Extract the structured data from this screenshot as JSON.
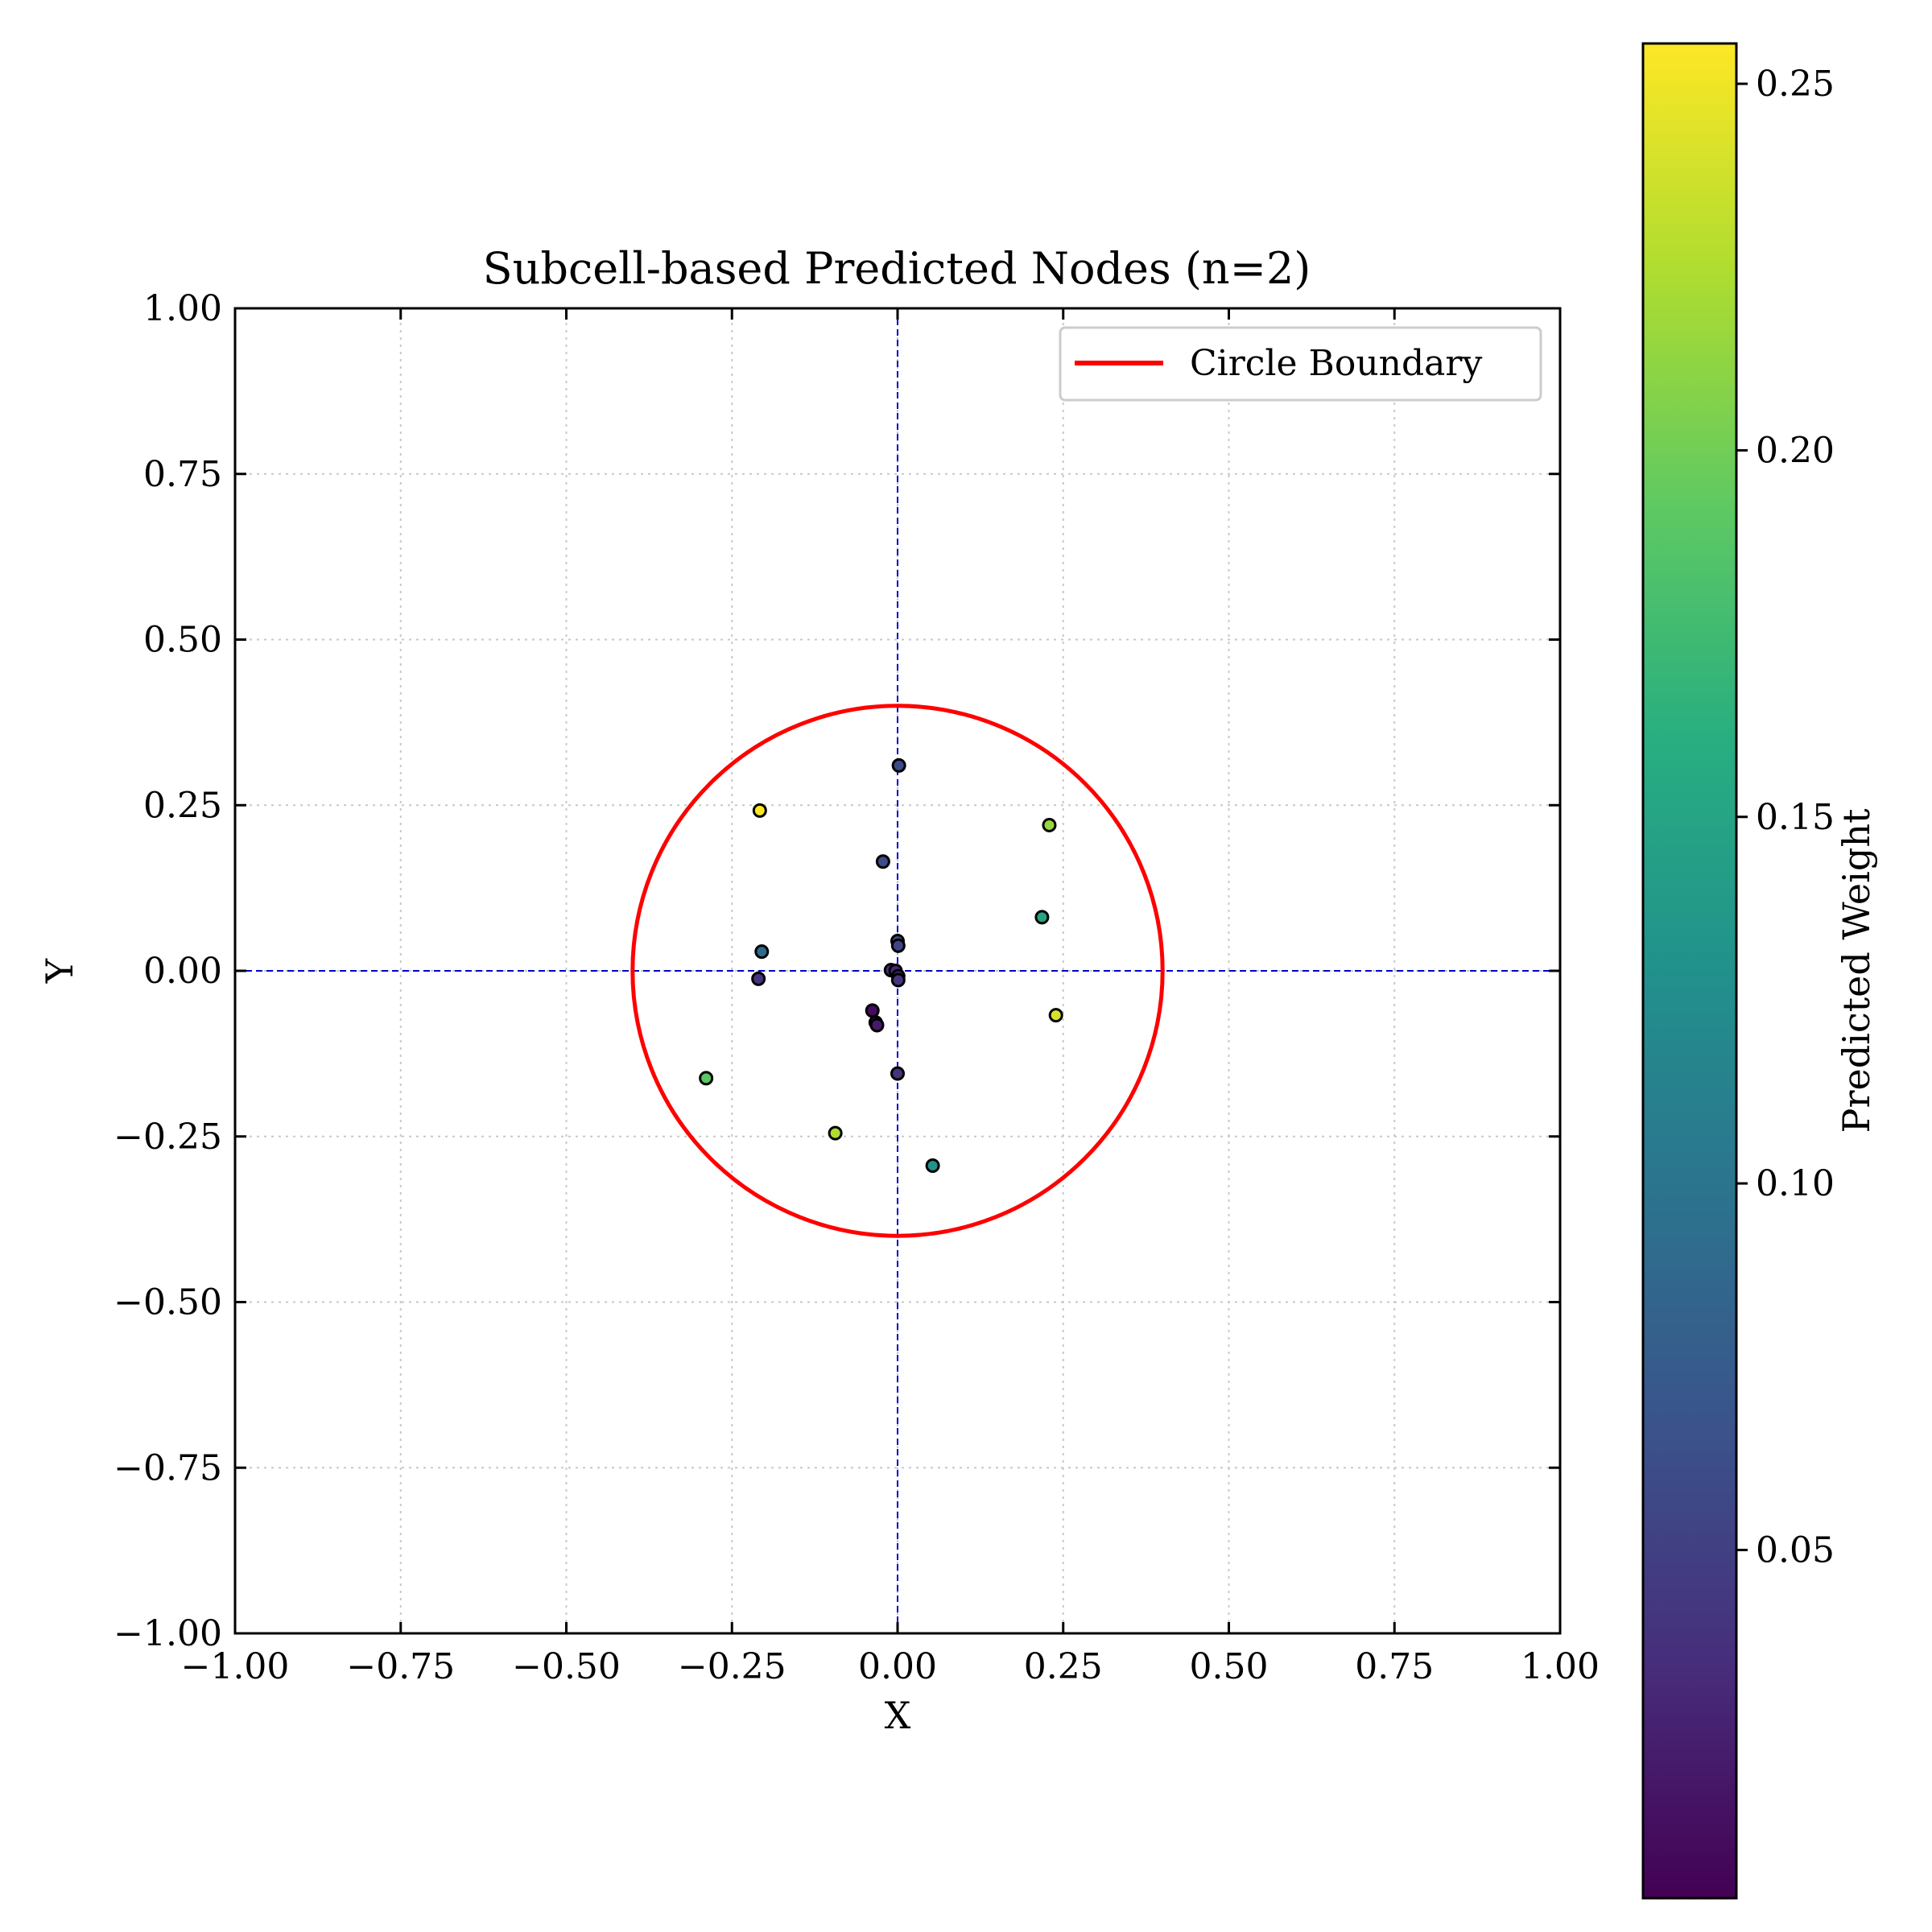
{
  "chart_data": {
    "type": "scatter",
    "title": "Subcell-based Predicted Nodes (n=2)",
    "xlabel": "X",
    "ylabel": "Y",
    "xlim": [
      -1.0,
      1.0
    ],
    "ylim": [
      -1.0,
      1.0
    ],
    "xticks": [
      "−1.00",
      "−0.75",
      "−0.50",
      "−0.25",
      "0.00",
      "0.25",
      "0.50",
      "0.75",
      "1.00"
    ],
    "yticks": [
      "−1.00",
      "−0.75",
      "−0.50",
      "−0.25",
      "0.00",
      "0.25",
      "0.50",
      "0.75",
      "1.00"
    ],
    "grid": true,
    "grid_style": "dotted",
    "legend_position": "top-right",
    "legend": [
      {
        "label": "Circle Boundary",
        "color": "#ff0000"
      }
    ],
    "circle_boundary": {
      "center": [
        0,
        0
      ],
      "radius": 0.4,
      "color": "#ff0000"
    },
    "reference_lines": {
      "x": 0,
      "y": 0,
      "color": "#0000cc",
      "style": "dashed"
    },
    "colorbar": {
      "label": "Predicted Weight",
      "colormap": "viridis",
      "range": [
        0.0025,
        0.2555
      ],
      "ticks": [
        "0.05",
        "0.10",
        "0.15",
        "0.20",
        "0.25"
      ]
    },
    "points": [
      {
        "x": 0.002,
        "y": 0.31,
        "w": 0.06
      },
      {
        "x": -0.208,
        "y": 0.242,
        "w": 0.255
      },
      {
        "x": -0.022,
        "y": 0.165,
        "w": 0.06
      },
      {
        "x": 0.229,
        "y": 0.22,
        "w": 0.215
      },
      {
        "x": 0.218,
        "y": 0.081,
        "w": 0.15
      },
      {
        "x": -0.205,
        "y": 0.029,
        "w": 0.09
      },
      {
        "x": -0.21,
        "y": -0.012,
        "w": 0.04
      },
      {
        "x": 0.0,
        "y": 0.045,
        "w": 0.06
      },
      {
        "x": 0.001,
        "y": 0.038,
        "w": 0.055
      },
      {
        "x": -0.01,
        "y": 0.001,
        "w": 0.04
      },
      {
        "x": -0.003,
        "y": 0.0,
        "w": 0.03
      },
      {
        "x": 0.001,
        "y": -0.008,
        "w": 0.03
      },
      {
        "x": 0.001,
        "y": -0.014,
        "w": 0.04
      },
      {
        "x": -0.038,
        "y": -0.06,
        "w": 0.01
      },
      {
        "x": -0.033,
        "y": -0.078,
        "w": 0.02
      },
      {
        "x": -0.031,
        "y": -0.082,
        "w": 0.02
      },
      {
        "x": 0.0,
        "y": -0.155,
        "w": 0.04
      },
      {
        "x": 0.239,
        "y": -0.067,
        "w": 0.24
      },
      {
        "x": -0.289,
        "y": -0.162,
        "w": 0.19
      },
      {
        "x": -0.094,
        "y": -0.245,
        "w": 0.225
      },
      {
        "x": 0.053,
        "y": -0.294,
        "w": 0.13
      }
    ]
  }
}
